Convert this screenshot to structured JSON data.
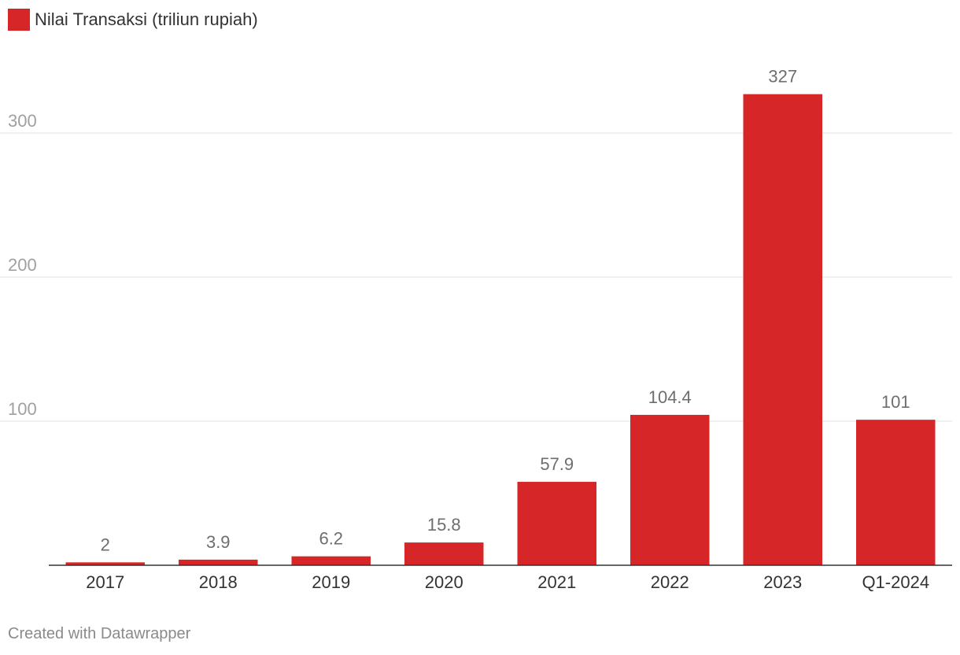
{
  "legend": {
    "label": "Nilai Transaksi (triliun rupiah)"
  },
  "footer": {
    "credit": "Created with Datawrapper"
  },
  "colors": {
    "bar": "#d62628",
    "grid": "#e0e0e0",
    "axis": "#333333",
    "tick_text": "#a0a0a0",
    "value_text": "#6e6e6e",
    "category_text": "#333333"
  },
  "chart_data": {
    "type": "bar",
    "title": "",
    "xlabel": "",
    "ylabel": "",
    "categories": [
      "2017",
      "2018",
      "2019",
      "2020",
      "2021",
      "2022",
      "2023",
      "Q1-2024"
    ],
    "series": [
      {
        "name": "Nilai Transaksi (triliun rupiah)",
        "values": [
          2,
          3.9,
          6.2,
          15.8,
          57.9,
          104.4,
          327,
          101
        ],
        "labels": [
          "2",
          "3.9",
          "6.2",
          "15.8",
          "57.9",
          "104.4",
          "327",
          "101"
        ]
      }
    ],
    "yticks": [
      100,
      200,
      300
    ],
    "ylim": [
      0,
      327
    ],
    "grid": true,
    "legend_position": "top-left"
  }
}
